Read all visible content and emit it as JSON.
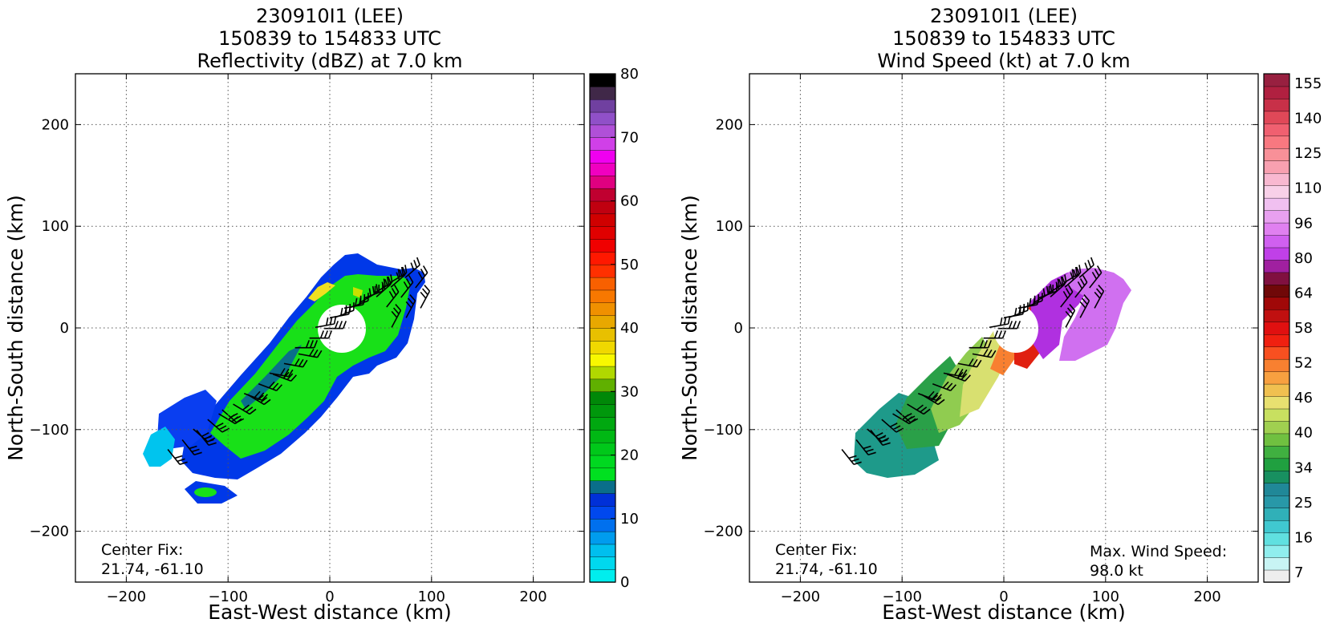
{
  "chart_data": [
    {
      "type": "heatmap",
      "title_lines": [
        "230910I1 (LEE)",
        "150839 to 154833 UTC",
        "Reflectivity (dBZ) at 7.0 km"
      ],
      "xlabel": "East-West distance (km)",
      "ylabel": "North-South distance (km)",
      "xlim": [
        -250,
        250
      ],
      "ylim": [
        -250,
        250
      ],
      "xticks": [
        -200,
        -100,
        0,
        100,
        200
      ],
      "yticks": [
        -200,
        -100,
        0,
        100,
        200
      ],
      "grid": true,
      "annotation_lines": [
        "Center Fix:",
        "21.74, -61.10"
      ],
      "colorbar": {
        "range": [
          0,
          80
        ],
        "ticks": [
          0,
          10,
          20,
          30,
          40,
          50,
          60,
          70,
          80
        ],
        "colors": [
          "#00eeee",
          "#00d8ee",
          "#00bfee",
          "#009cee",
          "#0070ee",
          "#0048ee",
          "#0030d8",
          "#0a6e8a",
          "#00e020",
          "#00d820",
          "#00c81a",
          "#00b814",
          "#00a810",
          "#00980c",
          "#008808",
          "#60b000",
          "#b0d800",
          "#f8f800",
          "#f0d800",
          "#e8c000",
          "#e8a800",
          "#f09000",
          "#f87800",
          "#f86000",
          "#ff3000",
          "#ff1800",
          "#f00000",
          "#e00000",
          "#d00000",
          "#c00010",
          "#c00030",
          "#e00080",
          "#f000c0",
          "#f000f0",
          "#d040e8",
          "#b050d8",
          "#9050c8",
          "#7040a0",
          "#402848",
          "#000000"
        ]
      },
      "series": [
        {
          "name": "",
          "points": [
            [
              -145,
              -110
            ],
            [
              -120,
              -90
            ],
            [
              -95,
              -75
            ],
            [
              -70,
              -55
            ],
            [
              -45,
              -35
            ],
            [
              -20,
              -10
            ],
            [
              0,
              10
            ],
            [
              20,
              20
            ],
            [
              45,
              35
            ],
            [
              60,
              40
            ],
            [
              70,
              30
            ],
            [
              75,
              10
            ]
          ]
        }
      ]
    },
    {
      "type": "heatmap",
      "title_lines": [
        "230910I1 (LEE)",
        "150839 to 154833 UTC",
        "Wind Speed (kt) at 7.0 km"
      ],
      "xlabel": "East-West distance (km)",
      "ylabel": "North-South distance (km)",
      "xlim": [
        -250,
        250
      ],
      "ylim": [
        -250,
        250
      ],
      "xticks": [
        -200,
        -100,
        0,
        100,
        200
      ],
      "yticks": [
        -200,
        -100,
        0,
        100,
        200
      ],
      "grid": true,
      "annotation_lines": [
        "Center Fix:",
        "21.74, -61.10"
      ],
      "max_wind_lines": [
        "Max. Wind Speed:",
        "98.0 kt"
      ],
      "colorbar": {
        "tick_labels": [
          "7",
          "16",
          "25",
          "34",
          "40",
          "46",
          "52",
          "58",
          "64",
          "80",
          "96",
          "110",
          "125",
          "140",
          "155"
        ],
        "colors": [
          "#eeeeee",
          "#c8f4f4",
          "#90eeee",
          "#60e0e0",
          "#40c8d0",
          "#30b0b8",
          "#2898a8",
          "#208898",
          "#189060",
          "#20a040",
          "#40b040",
          "#70c040",
          "#a0d050",
          "#c8e060",
          "#e8e070",
          "#f0c050",
          "#f8a040",
          "#f88030",
          "#f85020",
          "#f02010",
          "#e01010",
          "#c01010",
          "#a00808",
          "#700808",
          "#801040",
          "#a020a0",
          "#c040e8",
          "#d060f0",
          "#e080f0",
          "#e8a0f0",
          "#f0c0f0",
          "#f8d0e8",
          "#f8b8d0",
          "#f8a0b0",
          "#f89098",
          "#f87880",
          "#f06070",
          "#e04858",
          "#c83048",
          "#b02040",
          "#982040"
        ]
      },
      "series": [
        {
          "name": "",
          "points": [
            [
              -145,
              -110
            ],
            [
              -120,
              -90
            ],
            [
              -95,
              -75
            ],
            [
              -70,
              -55
            ],
            [
              -45,
              -35
            ],
            [
              -20,
              -10
            ],
            [
              0,
              10
            ],
            [
              20,
              20
            ],
            [
              45,
              35
            ],
            [
              60,
              40
            ],
            [
              70,
              30
            ],
            [
              75,
              10
            ]
          ]
        }
      ]
    }
  ]
}
